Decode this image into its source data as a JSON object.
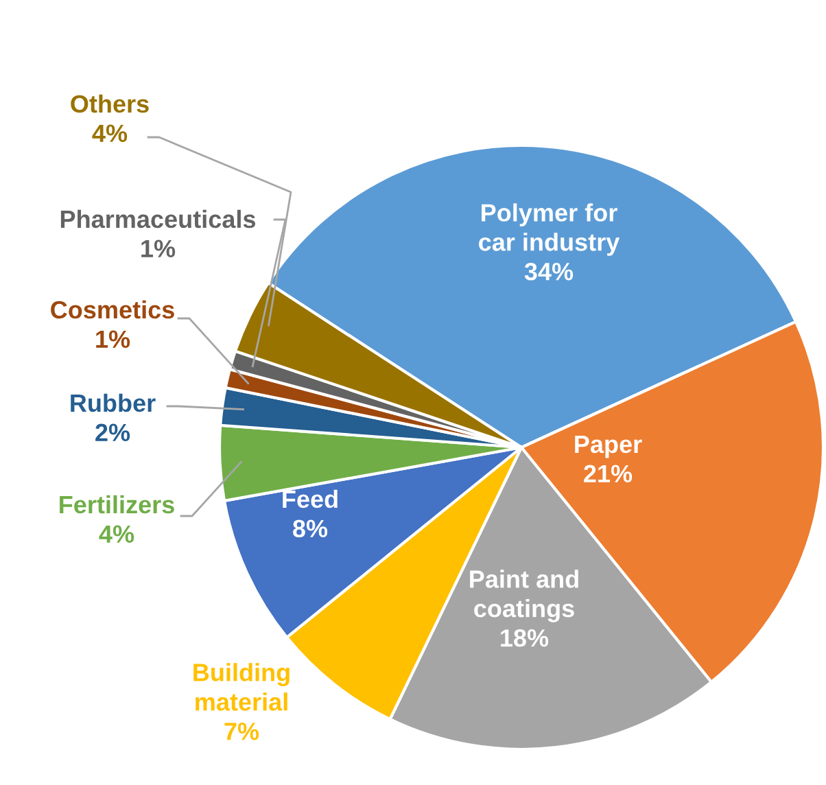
{
  "chart_data": {
    "type": "pie",
    "categories": [
      "Polymer for\ncar industry",
      "Paper",
      "Paint and\ncoatings",
      "Building\nmaterial",
      "Feed",
      "Fertilizers",
      "Rubber",
      "Cosmetics",
      "Pharmaceuticals",
      "Others"
    ],
    "values": [
      34,
      21,
      18,
      7,
      8,
      4,
      2,
      1,
      1,
      4
    ],
    "value_labels": [
      "34%",
      "21%",
      "18%",
      "7%",
      "8%",
      "4%",
      "2%",
      "1%",
      "1%",
      "4%"
    ],
    "colors": [
      "#5b9bd5",
      "#ed7d31",
      "#a5a5a5",
      "#ffc000",
      "#4472c4",
      "#70ad47",
      "#255e91",
      "#9e480e",
      "#636363",
      "#997300"
    ],
    "legend": false
  }
}
